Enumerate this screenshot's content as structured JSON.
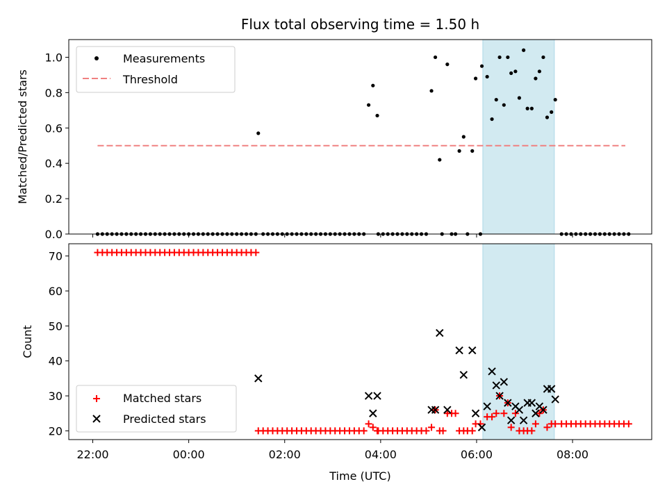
{
  "chart_data": {
    "title": "Flux total observing time = 1.50 h",
    "shaded_interval_hours": [
      30.13,
      31.62
    ],
    "shade_color": "#add8e6",
    "x_axis": {
      "label": "Time (UTC)",
      "range_hours": [
        21.5,
        33.65
      ],
      "ticks": [
        {
          "value": 22,
          "label": "22:00"
        },
        {
          "value": 24,
          "label": "00:00"
        },
        {
          "value": 26,
          "label": "02:00"
        },
        {
          "value": 28,
          "label": "04:00"
        },
        {
          "value": 30,
          "label": "06:00"
        },
        {
          "value": 32,
          "label": "08:00"
        }
      ]
    },
    "top_panel": {
      "type": "scatter",
      "ylabel": "Matched/Predicted stars",
      "ylim": [
        0,
        1.1
      ],
      "yticks": [
        "0.0",
        "0.2",
        "0.4",
        "0.6",
        "0.8",
        "1.0"
      ],
      "legend": {
        "position": "upper-left",
        "entries": [
          "Measurements",
          "Threshold"
        ]
      },
      "threshold": {
        "value": 0.5,
        "x_range": [
          22.1,
          33.1
        ],
        "color": "#f08080"
      },
      "measurements_color": "#000000",
      "zero_runs": [
        {
          "start": 22.1,
          "end": 25.4,
          "step": 0.1
        },
        {
          "start": 25.55,
          "end": 27.7,
          "step": 0.1
        },
        {
          "start": 27.95,
          "end": 29.0,
          "step": 0.1
        },
        {
          "start": 31.77,
          "end": 33.2,
          "step": 0.1
        }
      ],
      "points": [
        {
          "x": 25.45,
          "y": 0.57
        },
        {
          "x": 27.75,
          "y": 0.73
        },
        {
          "x": 27.84,
          "y": 0.84
        },
        {
          "x": 27.93,
          "y": 0.67
        },
        {
          "x": 29.06,
          "y": 0.81
        },
        {
          "x": 29.14,
          "y": 1.0
        },
        {
          "x": 29.23,
          "y": 0.42
        },
        {
          "x": 29.28,
          "y": 0.0
        },
        {
          "x": 29.39,
          "y": 0.96
        },
        {
          "x": 29.48,
          "y": 0.0
        },
        {
          "x": 29.56,
          "y": 0.0
        },
        {
          "x": 29.64,
          "y": 0.47
        },
        {
          "x": 29.73,
          "y": 0.55
        },
        {
          "x": 29.81,
          "y": 0.0
        },
        {
          "x": 29.91,
          "y": 0.47
        },
        {
          "x": 29.98,
          "y": 0.88
        },
        {
          "x": 30.08,
          "y": 0.0
        },
        {
          "x": 30.11,
          "y": 0.95
        },
        {
          "x": 30.22,
          "y": 0.89
        },
        {
          "x": 30.32,
          "y": 0.65
        },
        {
          "x": 30.41,
          "y": 0.76
        },
        {
          "x": 30.48,
          "y": 1.0
        },
        {
          "x": 30.57,
          "y": 0.73
        },
        {
          "x": 30.65,
          "y": 1.0
        },
        {
          "x": 30.72,
          "y": 0.91
        },
        {
          "x": 30.81,
          "y": 0.92
        },
        {
          "x": 30.89,
          "y": 0.77
        },
        {
          "x": 30.98,
          "y": 1.04
        },
        {
          "x": 31.06,
          "y": 0.71
        },
        {
          "x": 31.15,
          "y": 0.71
        },
        {
          "x": 31.23,
          "y": 0.88
        },
        {
          "x": 31.31,
          "y": 0.92
        },
        {
          "x": 31.39,
          "y": 1.0
        },
        {
          "x": 31.47,
          "y": 0.66
        },
        {
          "x": 31.56,
          "y": 0.69
        },
        {
          "x": 31.64,
          "y": 0.76
        }
      ]
    },
    "bottom_panel": {
      "type": "scatter",
      "ylabel": "Count",
      "ylim": [
        17.5,
        73.5
      ],
      "yticks": [
        20,
        30,
        40,
        50,
        60,
        70
      ],
      "legend": {
        "position": "lower-left",
        "entries": [
          "Matched stars",
          "Predicted stars"
        ]
      },
      "matched_color": "#ff0000",
      "predicted_color": "#000000",
      "matched_runs": [
        {
          "start": 22.1,
          "end": 25.4,
          "step": 0.1,
          "value": 71
        },
        {
          "start": 25.45,
          "end": 27.7,
          "step": 0.1,
          "value": 20
        },
        {
          "start": 27.95,
          "end": 29.0,
          "step": 0.1,
          "value": 20
        },
        {
          "start": 31.77,
          "end": 33.2,
          "step": 0.1,
          "value": 22
        }
      ],
      "matched_points": [
        {
          "x": 27.75,
          "y": 22
        },
        {
          "x": 27.84,
          "y": 21
        },
        {
          "x": 27.93,
          "y": 20
        },
        {
          "x": 29.06,
          "y": 21
        },
        {
          "x": 29.14,
          "y": 26
        },
        {
          "x": 29.23,
          "y": 20
        },
        {
          "x": 29.3,
          "y": 20
        },
        {
          "x": 29.39,
          "y": 25
        },
        {
          "x": 29.48,
          "y": 25
        },
        {
          "x": 29.56,
          "y": 25
        },
        {
          "x": 29.64,
          "y": 20
        },
        {
          "x": 29.73,
          "y": 20
        },
        {
          "x": 29.81,
          "y": 20
        },
        {
          "x": 29.91,
          "y": 20
        },
        {
          "x": 29.98,
          "y": 22
        },
        {
          "x": 30.08,
          "y": 22
        },
        {
          "x": 30.22,
          "y": 24
        },
        {
          "x": 30.32,
          "y": 24
        },
        {
          "x": 30.41,
          "y": 25
        },
        {
          "x": 30.48,
          "y": 30
        },
        {
          "x": 30.57,
          "y": 25
        },
        {
          "x": 30.65,
          "y": 28
        },
        {
          "x": 30.72,
          "y": 21
        },
        {
          "x": 30.81,
          "y": 25
        },
        {
          "x": 30.89,
          "y": 20
        },
        {
          "x": 30.98,
          "y": 20
        },
        {
          "x": 31.06,
          "y": 20
        },
        {
          "x": 31.15,
          "y": 20
        },
        {
          "x": 31.23,
          "y": 22
        },
        {
          "x": 31.31,
          "y": 25
        },
        {
          "x": 31.39,
          "y": 26
        },
        {
          "x": 31.47,
          "y": 21
        },
        {
          "x": 31.56,
          "y": 22
        },
        {
          "x": 31.64,
          "y": 22
        }
      ],
      "predicted_points": [
        {
          "x": 25.45,
          "y": 35
        },
        {
          "x": 27.75,
          "y": 30
        },
        {
          "x": 27.84,
          "y": 25
        },
        {
          "x": 27.93,
          "y": 30
        },
        {
          "x": 29.06,
          "y": 26
        },
        {
          "x": 29.14,
          "y": 26
        },
        {
          "x": 29.23,
          "y": 48
        },
        {
          "x": 29.39,
          "y": 26
        },
        {
          "x": 29.64,
          "y": 43
        },
        {
          "x": 29.73,
          "y": 36
        },
        {
          "x": 29.91,
          "y": 43
        },
        {
          "x": 29.98,
          "y": 25
        },
        {
          "x": 30.11,
          "y": 21
        },
        {
          "x": 30.22,
          "y": 27
        },
        {
          "x": 30.32,
          "y": 37
        },
        {
          "x": 30.41,
          "y": 33
        },
        {
          "x": 30.48,
          "y": 30
        },
        {
          "x": 30.57,
          "y": 34
        },
        {
          "x": 30.65,
          "y": 28
        },
        {
          "x": 30.72,
          "y": 23
        },
        {
          "x": 30.81,
          "y": 27
        },
        {
          "x": 30.89,
          "y": 26
        },
        {
          "x": 30.98,
          "y": 23
        },
        {
          "x": 31.06,
          "y": 28
        },
        {
          "x": 31.15,
          "y": 28
        },
        {
          "x": 31.23,
          "y": 25
        },
        {
          "x": 31.31,
          "y": 27
        },
        {
          "x": 31.39,
          "y": 26
        },
        {
          "x": 31.47,
          "y": 32
        },
        {
          "x": 31.56,
          "y": 32
        },
        {
          "x": 31.64,
          "y": 29
        }
      ]
    }
  }
}
